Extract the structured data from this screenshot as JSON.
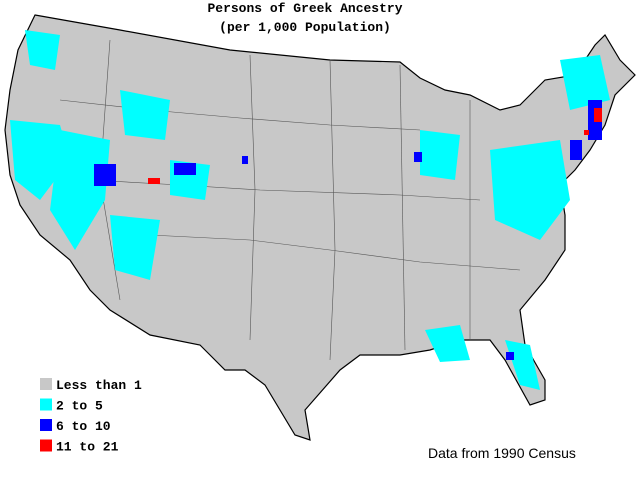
{
  "title": "Persons of Greek Ancestry",
  "subtitle": "(per 1,000 Population)",
  "legend": [
    {
      "label": "Less than 1",
      "color": "#c8c8c8"
    },
    {
      "label": "2 to 5",
      "color": "#00ffff"
    },
    {
      "label": "6 to 10",
      "color": "#0000ff"
    },
    {
      "label": "11 to 21",
      "color": "#ff0000"
    }
  ],
  "source": "Data from 1990 Census"
}
